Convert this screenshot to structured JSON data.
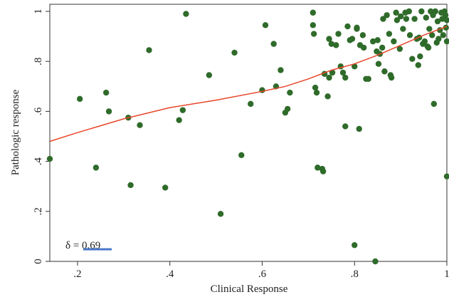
{
  "chart_data": {
    "type": "scatter",
    "xlabel": "Clinical Response",
    "ylabel": "Pathologic response",
    "xlim": [
      0.14,
      1.0
    ],
    "ylim": [
      0.0,
      1.0
    ],
    "x_ticks": [
      ".2",
      ".4",
      ".6",
      ".8",
      "1"
    ],
    "x_tick_values": [
      0.2,
      0.4,
      0.6,
      0.8,
      1.0
    ],
    "y_ticks": [
      "0",
      ".2",
      ".4",
      ".6",
      ".8",
      "1"
    ],
    "y_tick_values": [
      0.0,
      0.2,
      0.4,
      0.6,
      0.8,
      1.0
    ],
    "grid": false,
    "annotation": {
      "symbol": "δ",
      "text": " = ",
      "value": "0.69"
    },
    "colors": {
      "points": "#2f6b2a",
      "fit_line": "#e8462a",
      "annotation_underline": "#4a78c8",
      "axes": "#333333"
    },
    "series": [
      {
        "points": [
          [
            0.14,
            0.41
          ],
          [
            0.205,
            0.65
          ],
          [
            0.24,
            0.375
          ],
          [
            0.262,
            0.675
          ],
          [
            0.268,
            0.6
          ],
          [
            0.31,
            0.575
          ],
          [
            0.315,
            0.305
          ],
          [
            0.335,
            0.545
          ],
          [
            0.355,
            0.845
          ],
          [
            0.39,
            0.295
          ],
          [
            0.42,
            0.565
          ],
          [
            0.428,
            0.605
          ],
          [
            0.435,
            0.99
          ],
          [
            0.485,
            0.745
          ],
          [
            0.51,
            0.19
          ],
          [
            0.54,
            0.835
          ],
          [
            0.555,
            0.425
          ],
          [
            0.575,
            0.63
          ],
          [
            0.6,
            0.685
          ],
          [
            0.607,
            0.945
          ],
          [
            0.625,
            0.87
          ],
          [
            0.63,
            0.7
          ],
          [
            0.64,
            0.765
          ],
          [
            0.65,
            0.595
          ],
          [
            0.655,
            0.61
          ],
          [
            0.66,
            0.675
          ],
          [
            0.71,
            0.995
          ],
          [
            0.71,
            0.945
          ],
          [
            0.712,
            0.91
          ],
          [
            0.715,
            0.695
          ],
          [
            0.718,
            0.675
          ],
          [
            0.72,
            0.375
          ],
          [
            0.73,
            0.37
          ],
          [
            0.732,
            0.36
          ],
          [
            0.735,
            0.75
          ],
          [
            0.742,
            0.66
          ],
          [
            0.745,
            0.89
          ],
          [
            0.745,
            0.735
          ],
          [
            0.75,
            0.87
          ],
          [
            0.752,
            0.755
          ],
          [
            0.76,
            0.865
          ],
          [
            0.765,
            0.91
          ],
          [
            0.77,
            0.78
          ],
          [
            0.775,
            0.755
          ],
          [
            0.78,
            0.54
          ],
          [
            0.78,
            0.735
          ],
          [
            0.785,
            0.94
          ],
          [
            0.79,
            0.885
          ],
          [
            0.795,
            0.89
          ],
          [
            0.8,
            0.78
          ],
          [
            0.805,
            0.93
          ],
          [
            0.805,
            0.935
          ],
          [
            0.81,
            0.53
          ],
          [
            0.812,
            0.865
          ],
          [
            0.818,
            0.905
          ],
          [
            0.82,
            0.855
          ],
          [
            0.825,
            0.73
          ],
          [
            0.83,
            0.73
          ],
          [
            0.84,
            0.88
          ],
          [
            0.845,
            0.0
          ],
          [
            0.848,
            0.84
          ],
          [
            0.85,
            0.885
          ],
          [
            0.852,
            0.79
          ],
          [
            0.855,
            0.83
          ],
          [
            0.86,
            0.855
          ],
          [
            0.862,
            0.97
          ],
          [
            0.865,
            0.76
          ],
          [
            0.87,
            0.985
          ],
          [
            0.875,
            0.91
          ],
          [
            0.878,
            0.745
          ],
          [
            0.88,
            0.735
          ],
          [
            0.885,
            0.88
          ],
          [
            0.89,
            0.995
          ],
          [
            0.892,
            0.965
          ],
          [
            0.898,
            0.85
          ],
          [
            0.9,
            0.98
          ],
          [
            0.905,
            0.93
          ],
          [
            0.91,
            0.995
          ],
          [
            0.912,
            0.97
          ],
          [
            0.918,
            1.0
          ],
          [
            0.92,
            0.905
          ],
          [
            0.925,
            0.81
          ],
          [
            0.93,
            0.97
          ],
          [
            0.935,
            0.89
          ],
          [
            0.938,
            0.785
          ],
          [
            0.94,
            0.895
          ],
          [
            0.942,
            0.82
          ],
          [
            0.945,
            1.0
          ],
          [
            0.948,
            0.87
          ],
          [
            0.952,
            0.88
          ],
          [
            0.955,
            0.975
          ],
          [
            0.958,
            0.86
          ],
          [
            0.96,
            0.855
          ],
          [
            0.962,
            0.93
          ],
          [
            0.965,
            1.0
          ],
          [
            0.968,
            0.905
          ],
          [
            0.97,
            0.985
          ],
          [
            0.972,
            0.63
          ],
          [
            0.975,
            1.0
          ],
          [
            0.978,
            0.875
          ],
          [
            0.98,
            0.96
          ],
          [
            0.982,
            0.89
          ],
          [
            0.985,
            0.925
          ],
          [
            0.988,
            0.995
          ],
          [
            0.99,
            0.97
          ],
          [
            0.992,
            0.905
          ],
          [
            0.995,
            1.0
          ],
          [
            0.997,
            0.985
          ],
          [
            0.998,
            0.935
          ],
          [
            1.0,
            0.34
          ],
          [
            1.0,
            0.88
          ],
          [
            1.0,
            0.965
          ],
          [
            0.8,
            0.065
          ]
        ]
      }
    ],
    "fit_line": [
      [
        0.14,
        0.48
      ],
      [
        0.2,
        0.515
      ],
      [
        0.3,
        0.57
      ],
      [
        0.4,
        0.615
      ],
      [
        0.5,
        0.645
      ],
      [
        0.6,
        0.68
      ],
      [
        0.65,
        0.7
      ],
      [
        0.7,
        0.73
      ],
      [
        0.75,
        0.765
      ],
      [
        0.8,
        0.79
      ],
      [
        0.85,
        0.825
      ],
      [
        0.9,
        0.865
      ],
      [
        0.95,
        0.905
      ],
      [
        1.0,
        0.94
      ]
    ]
  }
}
